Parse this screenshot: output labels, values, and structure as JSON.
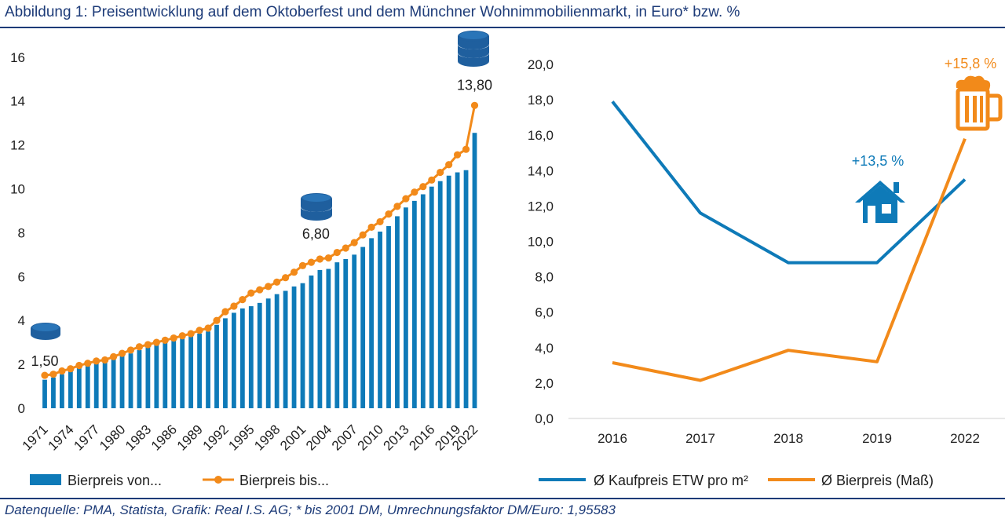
{
  "title": "Abbildung 1: Preisentwicklung auf dem Oktoberfest und dem Münchner Wohnimmobilienmarkt, in Euro* bzw. %",
  "source": "Datenquelle: PMA, Statista, Grafik: Real I.S. AG; * bis 2001 DM, Umrechnungsfaktor DM/Euro: 1,95583",
  "colors": {
    "blue": "#0e7ab8",
    "orange": "#f28a1a",
    "navy": "#1d3b78",
    "icon_blue": "#1f5f9e"
  },
  "chart_data": [
    {
      "type": "bar",
      "years": [
        1971,
        1972,
        1973,
        1974,
        1975,
        1976,
        1977,
        1978,
        1979,
        1980,
        1981,
        1982,
        1983,
        1984,
        1985,
        1986,
        1987,
        1988,
        1989,
        1990,
        1991,
        1992,
        1993,
        1994,
        1995,
        1996,
        1997,
        1998,
        1999,
        2000,
        2001,
        2002,
        2003,
        2004,
        2005,
        2006,
        2007,
        2008,
        2009,
        2010,
        2011,
        2012,
        2013,
        2014,
        2015,
        2016,
        2017,
        2018,
        2019,
        2020,
        2022
      ],
      "tick_labels": [
        "1971",
        "1974",
        "1977",
        "1980",
        "1983",
        "1986",
        "1989",
        "1992",
        "1995",
        "1998",
        "2001",
        "2004",
        "2007",
        "2010",
        "2013",
        "2016",
        "2019",
        "2022"
      ],
      "y_ticks": [
        "0",
        "2",
        "4",
        "6",
        "8",
        "10",
        "12",
        "14",
        "16"
      ],
      "ylim": [
        0,
        16.5
      ],
      "series": [
        {
          "name": "Bierpreis von...",
          "type": "bar",
          "values": [
            1.3,
            1.4,
            1.55,
            1.7,
            1.9,
            2.0,
            2.1,
            2.2,
            2.3,
            2.4,
            2.5,
            2.65,
            2.8,
            2.9,
            3.0,
            3.1,
            3.2,
            3.3,
            3.4,
            3.5,
            3.8,
            4.1,
            4.35,
            4.55,
            4.65,
            4.8,
            5.0,
            5.2,
            5.35,
            5.55,
            5.7,
            6.05,
            6.3,
            6.35,
            6.65,
            6.8,
            7.0,
            7.35,
            7.75,
            8.05,
            8.3,
            8.75,
            9.15,
            9.45,
            9.75,
            10.1,
            10.35,
            10.6,
            10.75,
            10.85,
            12.55
          ]
        },
        {
          "name": "Bierpreis bis...",
          "type": "line",
          "values": [
            1.5,
            1.55,
            1.7,
            1.8,
            1.95,
            2.05,
            2.15,
            2.2,
            2.35,
            2.5,
            2.65,
            2.8,
            2.9,
            3.0,
            3.1,
            3.2,
            3.3,
            3.4,
            3.55,
            3.65,
            4.0,
            4.4,
            4.65,
            4.95,
            5.25,
            5.4,
            5.55,
            5.75,
            5.95,
            6.2,
            6.5,
            6.65,
            6.8,
            6.85,
            7.1,
            7.3,
            7.55,
            7.9,
            8.25,
            8.5,
            8.85,
            9.2,
            9.55,
            9.85,
            10.1,
            10.4,
            10.75,
            11.1,
            11.55,
            11.8,
            13.8
          ]
        }
      ],
      "annotations": [
        {
          "year": 1971,
          "text": "1,50"
        },
        {
          "year": 2003,
          "text": "6,80"
        },
        {
          "year": 2022,
          "text": "13,80"
        }
      ],
      "legend": [
        "Bierpreis von...",
        "Bierpreis bis..."
      ],
      "legend_position": "bottom"
    },
    {
      "type": "line",
      "categories": [
        "2016",
        "2017",
        "2018",
        "2019",
        "2022"
      ],
      "y_ticks": [
        "0,0",
        "2,0",
        "4,0",
        "6,0",
        "8,0",
        "10,0",
        "12,0",
        "14,0",
        "16,0",
        "18,0",
        "20,0"
      ],
      "ylim": [
        0,
        20
      ],
      "series": [
        {
          "name": "Ø Kaufpreis ETW pro m²",
          "color": "#0e7ab8",
          "values": [
            17.9,
            11.6,
            8.8,
            8.8,
            13.5
          ]
        },
        {
          "name": "Ø Bierpreis (Maß)",
          "color": "#f28a1a",
          "values": [
            3.15,
            2.15,
            3.85,
            3.2,
            15.8
          ]
        }
      ],
      "annotations": [
        {
          "text": "+13,5 %",
          "color": "#0e7ab8"
        },
        {
          "text": "+15,8 %",
          "color": "#f28a1a"
        }
      ],
      "legend_position": "bottom"
    }
  ]
}
